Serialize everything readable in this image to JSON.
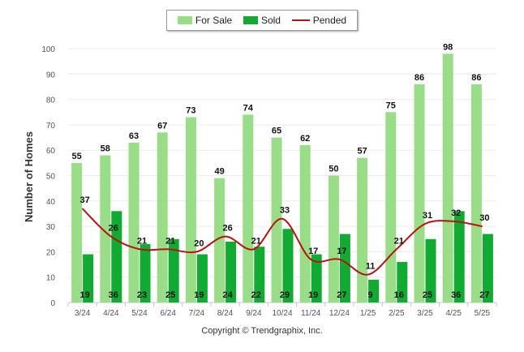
{
  "chart_data": {
    "type": "bar",
    "categories": [
      "3/24",
      "4/24",
      "5/24",
      "6/24",
      "7/24",
      "8/24",
      "9/24",
      "10/24",
      "11/24",
      "12/24",
      "1/25",
      "2/25",
      "3/25",
      "4/25",
      "5/25"
    ],
    "series": [
      {
        "name": "For Sale",
        "kind": "bar",
        "color": "#99dd88",
        "values": [
          55,
          58,
          63,
          67,
          73,
          49,
          74,
          65,
          62,
          50,
          57,
          75,
          86,
          98,
          86
        ]
      },
      {
        "name": "Sold",
        "kind": "bar",
        "color": "#11aa33",
        "values": [
          19,
          36,
          23,
          25,
          19,
          24,
          22,
          29,
          19,
          27,
          9,
          16,
          25,
          36,
          27
        ]
      },
      {
        "name": "Pended",
        "kind": "line",
        "color": "#bb1111",
        "values": [
          37,
          26,
          21,
          21,
          20,
          26,
          21,
          33,
          17,
          17,
          11,
          21,
          31,
          32,
          30
        ]
      }
    ],
    "xlabel": "",
    "ylabel": "Number of Homes",
    "ylim": [
      0,
      100
    ],
    "yticks": [
      0,
      10,
      20,
      30,
      40,
      50,
      60,
      70,
      80,
      90,
      100
    ],
    "grid": true,
    "legend_position": "top-center"
  },
  "copyright": "Copyright © Trendgraphix, Inc."
}
